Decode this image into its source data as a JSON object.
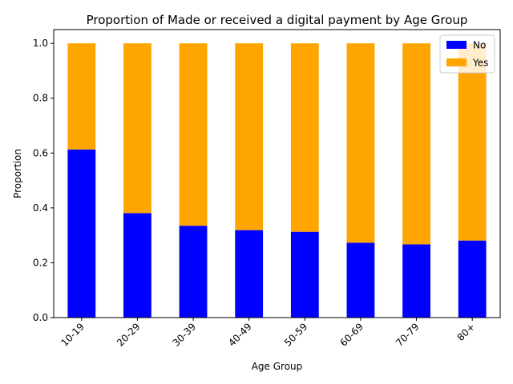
{
  "chart_data": {
    "type": "bar",
    "stacked": true,
    "title": "Proportion of Made or received a digital payment by Age Group",
    "xlabel": "Age Group",
    "ylabel": "Proportion",
    "categories": [
      "10-19",
      "20-29",
      "30-39",
      "40-49",
      "50-59",
      "60-69",
      "70-79",
      "80+"
    ],
    "series": [
      {
        "name": "No",
        "color": "#0000ff",
        "values": [
          0.613,
          0.381,
          0.335,
          0.319,
          0.313,
          0.273,
          0.267,
          0.281
        ]
      },
      {
        "name": "Yes",
        "color": "#ffa500",
        "values": [
          0.387,
          0.619,
          0.665,
          0.681,
          0.687,
          0.727,
          0.733,
          0.719
        ]
      }
    ],
    "ylim": [
      0,
      1.05
    ],
    "yticks": [
      "0.0",
      "0.2",
      "0.4",
      "0.6",
      "0.8",
      "1.0"
    ],
    "grid": false,
    "legend_position": "top-right"
  }
}
